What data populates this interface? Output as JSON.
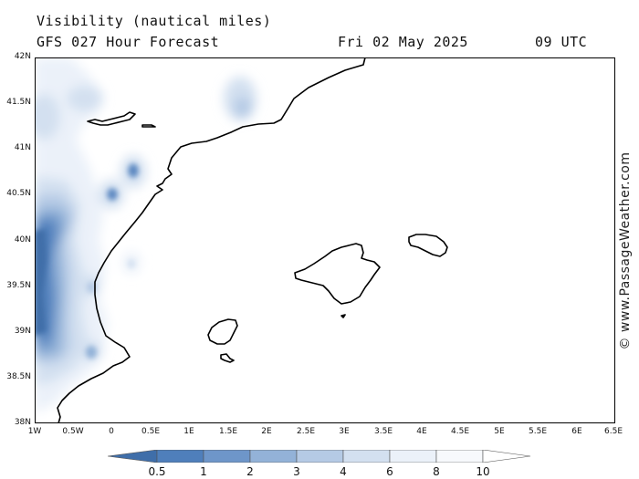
{
  "header": {
    "title": "Visibility (nautical miles)",
    "forecast": "GFS 027 Hour Forecast",
    "date": "Fri 02 May 2025",
    "time": "09 UTC"
  },
  "credit": "© www.PassageWeather.com",
  "axes": {
    "y_labels": [
      "42N",
      "41.5N",
      "41N",
      "40.5N",
      "40N",
      "39.5N",
      "39N",
      "38.5N",
      "38N"
    ],
    "x_labels": [
      "1W",
      "0.5W",
      "0",
      "0.5E",
      "1E",
      "1.5E",
      "2E",
      "2.5E",
      "3E",
      "3.5E",
      "4E",
      "4.5E",
      "5E",
      "5.5E",
      "6E",
      "6.5E"
    ]
  },
  "legend": {
    "labels": [
      "0.5",
      "1",
      "2",
      "3",
      "4",
      "6",
      "8",
      "10"
    ],
    "colors": [
      "#3f6ea9",
      "#4f7fbb",
      "#6e96c9",
      "#93b2d8",
      "#b5cae5",
      "#d3e0f0",
      "#ebf1f9",
      "#ffffff"
    ]
  }
}
